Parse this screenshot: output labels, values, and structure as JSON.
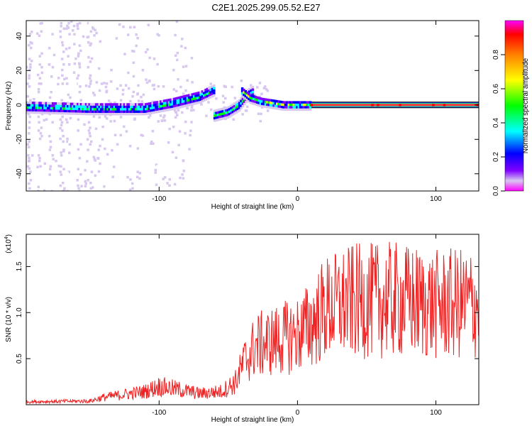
{
  "title": "C2E1.2025.299.05.52.E27",
  "colors": {
    "snr_line": "#ee2222",
    "spectro_background": "#ffffff",
    "colormap": [
      "#ffffff",
      "#d8c8f0",
      "#7f00ff",
      "#0000ff",
      "#00ffff",
      "#00ff00",
      "#ffff00",
      "#ff8000",
      "#ff0000",
      "#ff00ff"
    ]
  },
  "chart_data": [
    {
      "type": "heatmap",
      "xlabel": "Height of straight line (km)",
      "ylabel": "Frequency (Hz)",
      "xlim": [
        -196,
        131
      ],
      "ylim": [
        -50,
        49
      ],
      "xticks": [
        -100,
        0,
        100
      ],
      "yticks": [
        -40,
        -20,
        0,
        20,
        40
      ],
      "grid": false,
      "colorbar": {
        "label": "Normalized spectral amplitude",
        "range": [
          0,
          1
        ],
        "ticks": [
          "0.0",
          "0.2",
          "0.4",
          "0.6",
          "0.8"
        ]
      },
      "ridge": {
        "description_points": [
          {
            "x": -196,
            "y": -1
          },
          {
            "x": -150,
            "y": -2
          },
          {
            "x": -110,
            "y": -2
          },
          {
            "x": -90,
            "y": 1
          },
          {
            "x": -70,
            "y": 5
          },
          {
            "x": -60,
            "y": 9
          }
        ],
        "lower_branch": [
          {
            "x": -60,
            "y": -6
          },
          {
            "x": -50,
            "y": -4
          },
          {
            "x": -42,
            "y": 0
          },
          {
            "x": -36,
            "y": 6
          },
          {
            "x": -32,
            "y": 8
          }
        ],
        "upper_branch": [
          {
            "x": -40,
            "y": 8
          },
          {
            "x": -34,
            "y": 4
          },
          {
            "x": -26,
            "y": 2
          },
          {
            "x": -10,
            "y": 0
          },
          {
            "x": 10,
            "y": 0
          }
        ],
        "tone_start_km": 10,
        "tone_freq_hz": 0
      }
    },
    {
      "type": "line",
      "xlabel": "Height of straight line (km)",
      "ylabel": "SNR (10 * v/v)",
      "y_multiplier": "(x10",
      "y_multiplier_exp": "4",
      "xlim": [
        -196,
        131
      ],
      "ylim": [
        0,
        1.85
      ],
      "xticks": [
        -100,
        0,
        100
      ],
      "yticks": [
        0.5,
        1.0,
        1.5
      ],
      "ytick_labels": [
        "0.5",
        "1.0",
        "1.5"
      ],
      "grid": false,
      "series": [
        {
          "envelope": [
            {
              "x": -196,
              "y": 0.04
            },
            {
              "x": -150,
              "y": 0.05
            },
            {
              "x": -140,
              "y": 0.1
            },
            {
              "x": -110,
              "y": 0.18
            },
            {
              "x": -100,
              "y": 0.25
            },
            {
              "x": -90,
              "y": 0.22
            },
            {
              "x": -70,
              "y": 0.15
            },
            {
              "x": -55,
              "y": 0.18
            },
            {
              "x": -45,
              "y": 0.3
            },
            {
              "x": -38,
              "y": 0.6
            },
            {
              "x": -30,
              "y": 0.8
            },
            {
              "x": -20,
              "y": 0.85
            },
            {
              "x": -10,
              "y": 0.9
            },
            {
              "x": 0,
              "y": 0.95
            },
            {
              "x": 10,
              "y": 1.1
            },
            {
              "x": 20,
              "y": 1.3
            },
            {
              "x": 40,
              "y": 1.4
            },
            {
              "x": 70,
              "y": 1.42
            },
            {
              "x": 100,
              "y": 1.35
            },
            {
              "x": 131,
              "y": 1.38
            }
          ]
        }
      ]
    }
  ]
}
